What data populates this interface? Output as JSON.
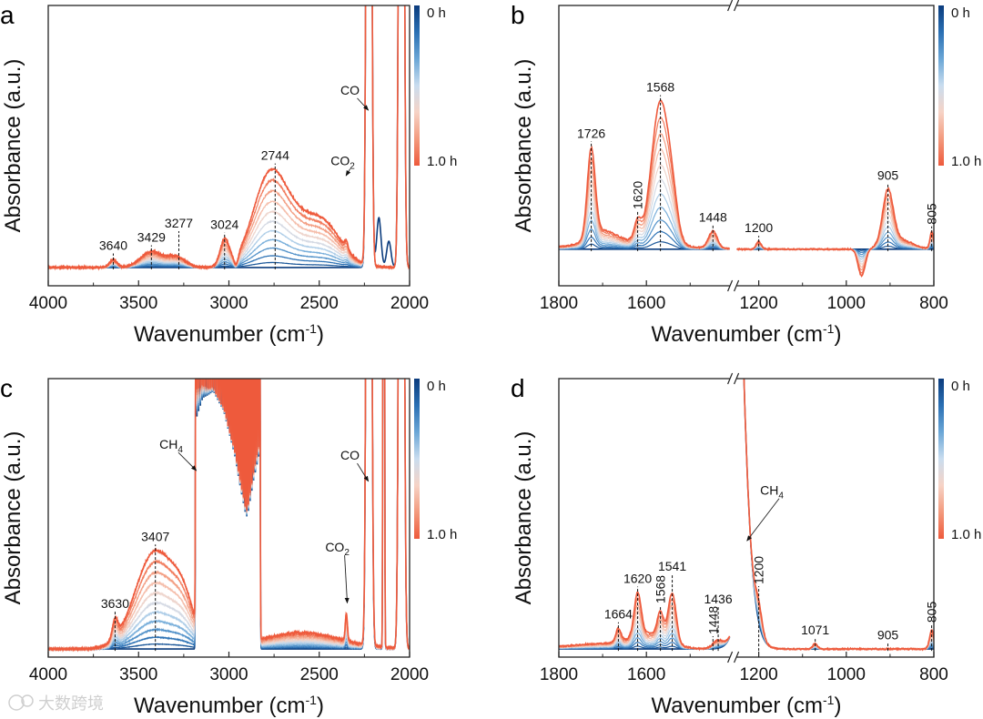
{
  "watermark": "大数跨境",
  "colors": {
    "series_stops": [
      "#0b3c7d",
      "#2a6fb3",
      "#6aa6d6",
      "#c9ddef",
      "#f6d3c6",
      "#f39a7d",
      "#ee5a3c"
    ],
    "annotation": "#111111",
    "axis": "#222222"
  },
  "chart_data": [
    {
      "panel": "a",
      "type": "line",
      "ylabel": "Absorbance (a.u.)",
      "xlabel": {
        "main": "Wavenumber (cm",
        "sup": "-1",
        "tail": ")"
      },
      "segments": [
        [
          4000,
          2000
        ]
      ],
      "xticks": [
        4000,
        3500,
        3000,
        2500,
        2000
      ],
      "xtick_labels": [
        "4000",
        "3500",
        "3000",
        "2500",
        "2000"
      ],
      "ylim": [
        -0.07,
        1
      ],
      "colorbar": {
        "top": "0 h",
        "bottom": "1.0 h"
      },
      "n_series": 12,
      "time_range_h": [
        0,
        1
      ],
      "peaks": [
        {
          "x": 3640,
          "w": 20,
          "a": 0.03,
          "kind": "grow"
        },
        {
          "x": 3429,
          "w": 60,
          "a": 0.06,
          "kind": "grow"
        },
        {
          "x": 3290,
          "w": 50,
          "a": 0.04,
          "kind": "grow"
        },
        {
          "x": 3024,
          "w": 25,
          "a": 0.1,
          "kind": "grow"
        },
        {
          "x": 2960,
          "w": 12,
          "a": -0.04,
          "kind": "grow"
        },
        {
          "x": 2780,
          "w": 90,
          "a": 0.28,
          "kind": "grow"
        },
        {
          "x": 2600,
          "w": 150,
          "a": 0.18,
          "kind": "grow"
        },
        {
          "x": 2450,
          "w": 80,
          "a": 0.06,
          "kind": "grow"
        },
        {
          "x": 2350,
          "w": 10,
          "a": 0.03,
          "kind": "grow"
        },
        {
          "x": 2225,
          "w": 10,
          "a": 6,
          "kind": "const"
        },
        {
          "x": 2045,
          "w": 10,
          "a": 6,
          "kind": "const"
        },
        {
          "x": 2170,
          "w": 12,
          "a": 0.19,
          "kind": "initial"
        },
        {
          "x": 2115,
          "w": 12,
          "a": 0.1,
          "kind": "initial"
        }
      ],
      "annotations": [
        {
          "label": "3640",
          "x": 3640,
          "vertical": false
        },
        {
          "label": "3429",
          "x": 3429,
          "vertical": false
        },
        {
          "label": "3277",
          "x": 3277,
          "vertical": false
        },
        {
          "label": "3024",
          "x": 3024,
          "vertical": false
        },
        {
          "label": "2744",
          "x": 2744,
          "vertical": false
        }
      ],
      "arrows": [
        {
          "label": "CO",
          "sub": "",
          "x": 2228,
          "y": 0.6,
          "text_at": [
            2330,
            0.66
          ]
        },
        {
          "label": "CO",
          "sub": "2",
          "x": 2352,
          "y": 0.35,
          "text_at": [
            2370,
            0.39
          ]
        }
      ]
    },
    {
      "panel": "b",
      "type": "line",
      "ylabel": "Absorbance (a.u.)",
      "xlabel": {
        "main": "Wavenumber (cm",
        "sup": "-1",
        "tail": ")"
      },
      "segments": [
        [
          1800,
          1410
        ],
        [
          1250,
          800
        ]
      ],
      "xticks": [
        1800,
        1600,
        1200,
        1000,
        800
      ],
      "xtick_labels": [
        "1800",
        "1600",
        "1200",
        "1000",
        "800"
      ],
      "ylim": [
        -0.15,
        1
      ],
      "colorbar": {
        "top": "0 h",
        "bottom": "1.0 h"
      },
      "n_series": 12,
      "time_range_h": [
        0,
        1
      ],
      "peaks": [
        {
          "x": 1650,
          "w": 100,
          "a": 0.03,
          "kind": "grow"
        },
        {
          "x": 1726,
          "w": 9,
          "a": 0.36,
          "kind": "grow"
        },
        {
          "x": 1700,
          "w": 30,
          "a": 0.05,
          "kind": "grow"
        },
        {
          "x": 1620,
          "w": 8,
          "a": 0.08,
          "kind": "grow"
        },
        {
          "x": 1568,
          "w": 20,
          "a": 0.58,
          "kind": "grow"
        },
        {
          "x": 1540,
          "w": 12,
          "a": 0.1,
          "kind": "grow"
        },
        {
          "x": 1448,
          "w": 10,
          "a": 0.07,
          "kind": "grow"
        },
        {
          "x": 1200,
          "w": 6,
          "a": 0.03,
          "kind": "grow"
        },
        {
          "x": 965,
          "w": 8,
          "a": -0.11,
          "kind": "grow"
        },
        {
          "x": 905,
          "w": 12,
          "a": 0.22,
          "kind": "grow"
        },
        {
          "x": 880,
          "w": 30,
          "a": 0.04,
          "kind": "grow"
        },
        {
          "x": 805,
          "w": 4,
          "a": 0.07,
          "kind": "grow"
        }
      ],
      "annotations": [
        {
          "label": "1726",
          "x": 1726,
          "vertical": false
        },
        {
          "label": "1620",
          "x": 1620,
          "vertical": true
        },
        {
          "label": "1568",
          "x": 1568,
          "vertical": false
        },
        {
          "label": "1448",
          "x": 1448,
          "vertical": false
        },
        {
          "label": "1200",
          "x": 1200,
          "vertical": false
        },
        {
          "label": "905",
          "x": 905,
          "vertical": false
        },
        {
          "label": "805",
          "x": 805,
          "vertical": true
        }
      ],
      "arrows": []
    },
    {
      "panel": "c",
      "type": "line",
      "ylabel": "Absorbance (a.u.)",
      "xlabel": {
        "main": "Wavenumber (cm",
        "sup": "-1",
        "tail": ")"
      },
      "segments": [
        [
          4000,
          2000
        ]
      ],
      "xticks": [
        4000,
        3500,
        3000,
        2500,
        2000
      ],
      "xtick_labels": [
        "4000",
        "3500",
        "3000",
        "2500",
        "2000"
      ],
      "ylim": [
        -0.03,
        1
      ],
      "colorbar": {
        "top": "0 h",
        "bottom": "1.0 h"
      },
      "n_series": 12,
      "time_range_h": [
        0,
        1
      ],
      "peaks": [
        {
          "x": 3630,
          "w": 15,
          "a": 0.07,
          "kind": "grow"
        },
        {
          "x": 3407,
          "w": 110,
          "a": 0.36,
          "kind": "grow"
        },
        {
          "x": 3250,
          "w": 60,
          "a": 0.12,
          "kind": "grow"
        },
        {
          "x": 2600,
          "w": 220,
          "a": 0.06,
          "kind": "grow"
        },
        {
          "x": 2350,
          "w": 6,
          "a": 0.1,
          "kind": "grow"
        },
        {
          "x": 2225,
          "w": 10,
          "a": 6,
          "kind": "const"
        },
        {
          "x": 2045,
          "w": 10,
          "a": 6,
          "kind": "const"
        },
        {
          "x": 2143,
          "w": 3,
          "a": 6,
          "kind": "const"
        }
      ],
      "line_series": [
        {
          "start": 2830,
          "end": 3190,
          "step": 9.5,
          "w": 2.6,
          "a": 2.5
        }
      ],
      "annotations": [
        {
          "label": "3630",
          "x": 3630,
          "vertical": false
        },
        {
          "label": "3407",
          "x": 3407,
          "vertical": false
        }
      ],
      "arrows": [
        {
          "label": "CH",
          "sub": "4",
          "x": 3180,
          "y": 0.66,
          "text_at": [
            3320,
            0.74
          ]
        },
        {
          "label": "CO",
          "sub": "2",
          "x": 2345,
          "y": 0.17,
          "text_at": [
            2400,
            0.36
          ]
        },
        {
          "label": "CO",
          "sub": "",
          "x": 2228,
          "y": 0.62,
          "text_at": [
            2330,
            0.7
          ]
        }
      ]
    },
    {
      "panel": "d",
      "type": "line",
      "ylabel": "Absorbance (a.u.)",
      "xlabel": {
        "main": "Wavenumber (cm",
        "sup": "-1",
        "tail": ")"
      },
      "segments": [
        [
          1800,
          1410
        ],
        [
          1250,
          800
        ]
      ],
      "xticks": [
        1800,
        1600,
        1200,
        1000,
        800
      ],
      "xtick_labels": [
        "1800",
        "1600",
        "1200",
        "1000",
        "800"
      ],
      "ylim": [
        -0.03,
        1
      ],
      "colorbar": {
        "top": "0 h",
        "bottom": "1.0 h"
      },
      "n_series": 12,
      "time_range_h": [
        0,
        1
      ],
      "peaks": [
        {
          "x": 1700,
          "w": 80,
          "a": 0.02,
          "kind": "grow"
        },
        {
          "x": 1664,
          "w": 6,
          "a": 0.05,
          "kind": "grow"
        },
        {
          "x": 1620,
          "w": 8,
          "a": 0.16,
          "kind": "grow"
        },
        {
          "x": 1590,
          "w": 40,
          "a": 0.05,
          "kind": "grow"
        },
        {
          "x": 1568,
          "w": 7,
          "a": 0.09,
          "kind": "grow"
        },
        {
          "x": 1541,
          "w": 9,
          "a": 0.18,
          "kind": "grow"
        },
        {
          "x": 1436,
          "w": 12,
          "a": 0.03,
          "kind": "grow"
        },
        {
          "x": 1200,
          "w": 8,
          "a": 0.08,
          "kind": "grow"
        },
        {
          "x": 1071,
          "w": 5,
          "a": 0.02,
          "kind": "grow"
        },
        {
          "x": 805,
          "w": 5,
          "a": 0.07,
          "kind": "grow"
        },
        {
          "x": 1300,
          "w": 35,
          "a": 6,
          "kind": "const"
        }
      ],
      "annotations": [
        {
          "label": "1664",
          "x": 1664,
          "vertical": false
        },
        {
          "label": "1620",
          "x": 1620,
          "vertical": false
        },
        {
          "label": "1568",
          "x": 1568,
          "vertical": true
        },
        {
          "label": "1541",
          "x": 1541,
          "vertical": false
        },
        {
          "label": "1448",
          "x": 1448,
          "vertical": true
        },
        {
          "label": "1436",
          "x": 1436,
          "vertical": false
        },
        {
          "label": "1200",
          "x": 1200,
          "vertical": true
        },
        {
          "label": "1071",
          "x": 1071,
          "vertical": false
        },
        {
          "label": "905",
          "x": 905,
          "vertical": false
        },
        {
          "label": "805",
          "x": 805,
          "vertical": true
        }
      ],
      "arrows": [
        {
          "label": "CH",
          "sub": "4",
          "x": 1227,
          "y": 0.4,
          "text_at": [
            1170,
            0.57
          ]
        }
      ]
    }
  ]
}
